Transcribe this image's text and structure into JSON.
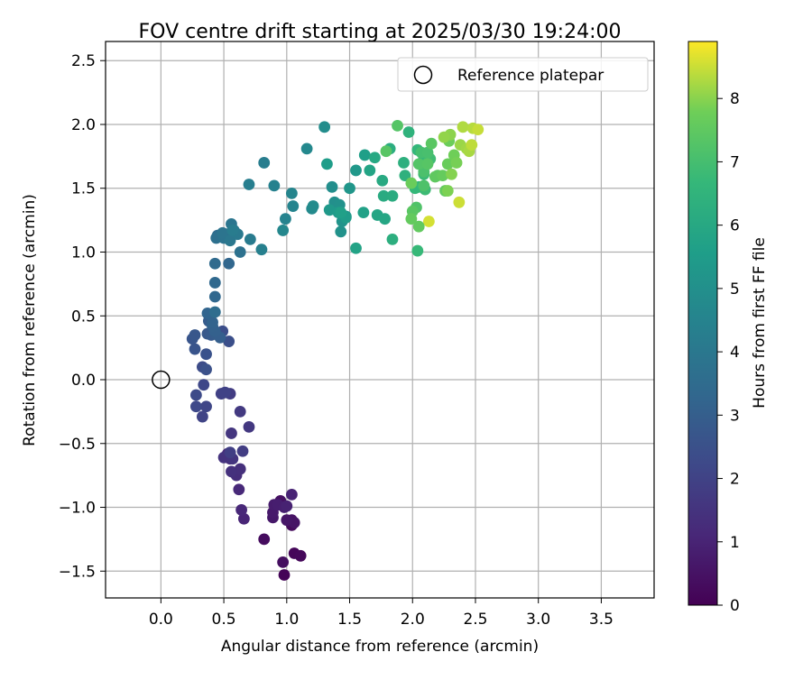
{
  "chart_data": {
    "type": "scatter",
    "title": "FOV centre drift starting at 2025/03/30 19:24:00",
    "xlabel": "Angular distance from reference (arcmin)",
    "ylabel": "Rotation from reference (arcmin)",
    "xlim": [
      -0.44,
      3.92
    ],
    "ylim": [
      -1.71,
      2.65
    ],
    "x_ticks": [
      0.0,
      0.5,
      1.0,
      1.5,
      2.0,
      2.5,
      3.0,
      3.5
    ],
    "x_tick_labels": [
      "0.0",
      "0.5",
      "1.0",
      "1.5",
      "2.0",
      "2.5",
      "3.0",
      "3.5"
    ],
    "y_ticks": [
      -1.5,
      -1.0,
      -0.5,
      0.0,
      0.5,
      1.0,
      1.5,
      2.0,
      2.5
    ],
    "y_tick_labels": [
      "−1.5",
      "−1.0",
      "−0.5",
      "0.0",
      "0.5",
      "1.0",
      "1.5",
      "2.0",
      "2.5"
    ],
    "grid": true,
    "legend": {
      "placement": "top-right",
      "entries": [
        "Reference platepar"
      ]
    },
    "reference_point": {
      "name": "Reference platepar",
      "x": 0.0,
      "y": 0.0
    },
    "colorbar": {
      "label": "Hours from first FF file",
      "range": [
        0,
        8.9
      ],
      "ticks": [
        0,
        1,
        2,
        3,
        4,
        5,
        6,
        7,
        8
      ],
      "tick_labels": [
        "0",
        "1",
        "2",
        "3",
        "4",
        "5",
        "6",
        "7",
        "8"
      ],
      "colormap": "viridis"
    },
    "series": [
      {
        "x": [
          0.98,
          1.06,
          1.11,
          1.04,
          0.82,
          0.97,
          0.95,
          1.04,
          1.06,
          1.0,
          0.89,
          0.89,
          0.9,
          0.93,
          0.98,
          1.0,
          1.04,
          0.66,
          0.64,
          0.62,
          0.53,
          0.55,
          0.6,
          0.63,
          0.56,
          0.5,
          0.57,
          0.56,
          0.7,
          0.63,
          0.55,
          0.65,
          0.55,
          0.48,
          0.51,
          0.33,
          0.36,
          0.34,
          0.28,
          0.28,
          0.33,
          0.49,
          0.54,
          0.36,
          0.36,
          0.27,
          0.25,
          0.27,
          0.37,
          0.4,
          0.38,
          0.43,
          0.47,
          0.43,
          0.41,
          0.41,
          0.37,
          0.54,
          0.43,
          0.43,
          0.43,
          0.45,
          0.43,
          0.52,
          0.44,
          0.63,
          0.5,
          0.49,
          0.56,
          0.55,
          0.58,
          0.61,
          0.71,
          0.57,
          0.82,
          0.7,
          0.8,
          0.9,
          0.99,
          1.05,
          1.04,
          0.97,
          1.16,
          1.2,
          1.21,
          1.3,
          1.36,
          1.38,
          1.42,
          1.43,
          1.44,
          1.47,
          1.5,
          1.55,
          1.34,
          1.41,
          1.47,
          1.32,
          1.62,
          1.43,
          1.61,
          1.55,
          1.66,
          1.72,
          1.78,
          1.7,
          1.76,
          1.77,
          1.84,
          1.82,
          1.84,
          1.93,
          1.94,
          1.97,
          2.05,
          2.09,
          2.04,
          2.02,
          2.04,
          2.09,
          2.1,
          2.14,
          2.12,
          2.07,
          2.12,
          2.09,
          2.09,
          2.03,
          2.05,
          2.12,
          2.15,
          2.2,
          2.18,
          2.26,
          2.24,
          2.28,
          2.29,
          2.33,
          2.35,
          2.28,
          2.31,
          2.3,
          2.25,
          2.38,
          2.43,
          2.45,
          2.4,
          2.48,
          2.47,
          2.52,
          2.37,
          2.13,
          2.05,
          2.0,
          1.88,
          1.79,
          1.99,
          1.99
        ],
        "y": [
          -1.53,
          -1.36,
          -1.38,
          -1.14,
          -1.25,
          -1.43,
          -0.95,
          -1.1,
          -1.12,
          -1.1,
          -1.08,
          -1.04,
          -0.98,
          -0.98,
          -1.0,
          -0.99,
          -0.9,
          -1.09,
          -1.02,
          -0.86,
          -0.58,
          -0.62,
          -0.75,
          -0.7,
          -0.72,
          -0.61,
          -0.62,
          -0.42,
          -0.37,
          -0.25,
          -0.11,
          -0.56,
          -0.57,
          -0.11,
          -0.1,
          -0.29,
          -0.21,
          -0.04,
          -0.21,
          -0.12,
          0.1,
          0.38,
          0.3,
          0.08,
          0.2,
          0.24,
          0.32,
          0.35,
          0.36,
          0.35,
          0.46,
          0.36,
          0.33,
          0.38,
          0.42,
          0.45,
          0.52,
          0.91,
          0.65,
          0.76,
          0.91,
          1.13,
          0.53,
          1.14,
          1.11,
          1.0,
          1.11,
          1.15,
          1.22,
          1.09,
          1.17,
          1.14,
          1.1,
          1.17,
          1.7,
          1.53,
          1.02,
          1.52,
          1.26,
          1.36,
          1.46,
          1.17,
          1.81,
          1.34,
          1.36,
          1.98,
          1.51,
          1.39,
          1.37,
          1.16,
          1.24,
          1.28,
          1.5,
          1.64,
          1.33,
          1.31,
          1.27,
          1.69,
          1.76,
          1.31,
          1.31,
          1.03,
          1.64,
          1.29,
          1.26,
          1.74,
          1.56,
          1.44,
          1.44,
          1.81,
          1.1,
          1.7,
          1.6,
          1.94,
          1.51,
          1.73,
          1.8,
          1.5,
          1.01,
          1.61,
          1.49,
          1.73,
          1.7,
          1.78,
          1.78,
          1.63,
          1.52,
          1.35,
          1.69,
          1.69,
          1.85,
          1.6,
          1.59,
          1.48,
          1.6,
          1.69,
          1.87,
          1.76,
          1.7,
          1.48,
          1.61,
          1.92,
          1.9,
          1.84,
          1.81,
          1.79,
          1.98,
          1.97,
          1.84,
          1.96,
          1.39,
          1.24,
          1.2,
          1.32,
          1.99,
          1.79,
          1.54,
          1.26
        ],
        "hours": [
          0.08,
          0.14,
          0.2,
          0.25,
          0.31,
          0.37,
          0.42,
          0.48,
          0.53,
          0.59,
          0.65,
          0.7,
          0.76,
          0.82,
          0.87,
          0.93,
          0.98,
          1.04,
          1.1,
          1.15,
          1.21,
          1.27,
          1.32,
          1.38,
          1.43,
          1.49,
          1.55,
          1.6,
          1.66,
          1.72,
          1.77,
          1.83,
          1.88,
          1.94,
          2.0,
          2.05,
          2.11,
          2.17,
          2.22,
          2.28,
          2.33,
          2.39,
          2.45,
          2.5,
          2.56,
          2.62,
          2.67,
          2.73,
          2.78,
          2.84,
          2.9,
          2.95,
          3.01,
          3.07,
          3.12,
          3.18,
          3.23,
          3.29,
          3.35,
          3.4,
          3.46,
          3.52,
          3.57,
          3.63,
          3.68,
          3.74,
          3.8,
          3.85,
          3.91,
          3.97,
          4.02,
          4.08,
          4.13,
          4.19,
          4.25,
          4.3,
          4.36,
          4.42,
          4.47,
          4.53,
          4.58,
          4.64,
          4.7,
          4.75,
          4.81,
          4.87,
          4.92,
          4.98,
          5.03,
          5.09,
          5.15,
          5.2,
          5.26,
          5.32,
          5.37,
          5.43,
          5.48,
          5.54,
          5.6,
          5.65,
          5.71,
          5.77,
          5.82,
          5.88,
          5.93,
          5.99,
          6.05,
          6.1,
          6.16,
          6.22,
          6.27,
          6.33,
          6.38,
          6.44,
          6.5,
          6.55,
          6.61,
          6.67,
          6.72,
          6.78,
          6.83,
          6.89,
          6.95,
          7.0,
          7.06,
          7.12,
          7.17,
          7.23,
          7.28,
          7.34,
          7.4,
          7.45,
          7.51,
          7.57,
          7.62,
          7.68,
          7.73,
          7.79,
          7.85,
          7.9,
          7.96,
          8.02,
          8.07,
          8.13,
          8.18,
          8.24,
          8.3,
          8.35,
          8.41,
          8.47,
          8.52,
          8.58,
          7.55,
          7.4,
          7.3,
          7.35,
          7.7,
          7.6,
          8.2,
          8.1
        ]
      }
    ]
  }
}
